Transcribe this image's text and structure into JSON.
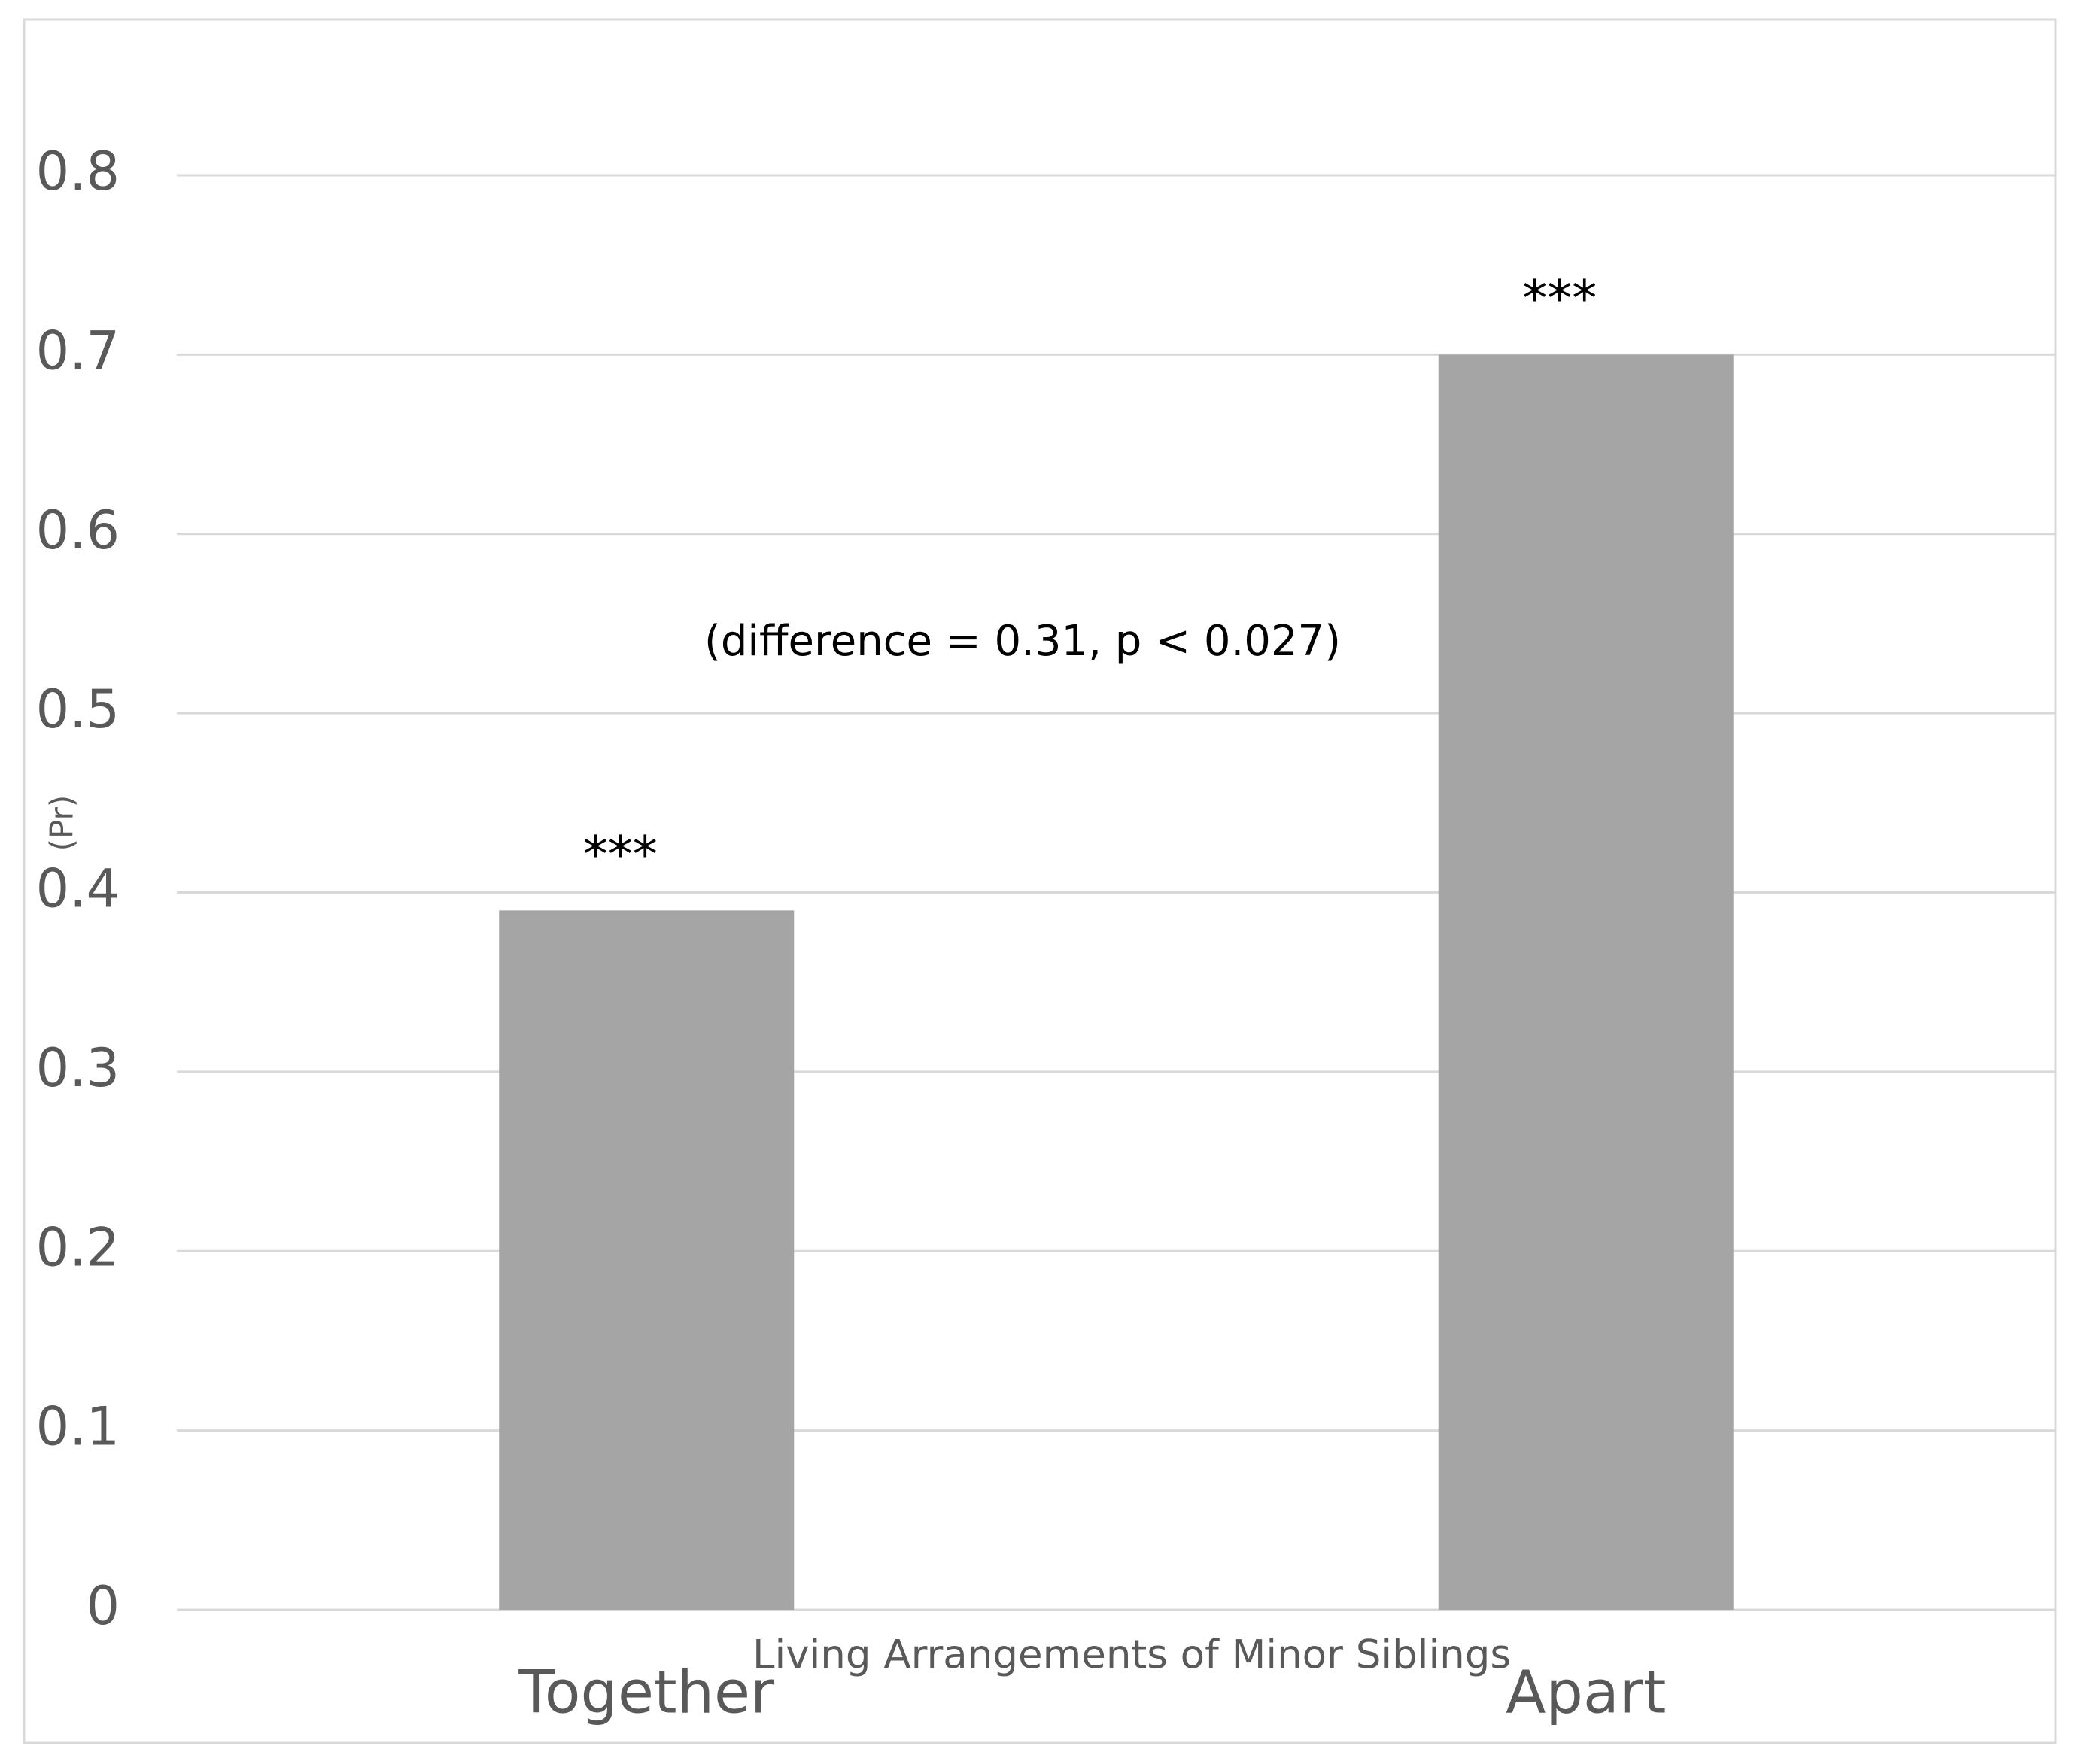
{
  "chart_data": {
    "type": "bar",
    "categories": [
      "Together",
      "Apart"
    ],
    "values": [
      0.39,
      0.7
    ],
    "color": "#a5a5a5",
    "bar_annotations": [
      "***",
      "***"
    ],
    "annotation": "(difference = 0.31, p < 0.027)",
    "x_label": "Living Arrangements of Minor Siblings",
    "y_label": "(Pr)",
    "ylim": [
      0,
      0.8
    ],
    "yticks": [
      0,
      0.1,
      0.2,
      0.3,
      0.4,
      0.5,
      0.6,
      0.7,
      0.8
    ],
    "grid": true
  }
}
